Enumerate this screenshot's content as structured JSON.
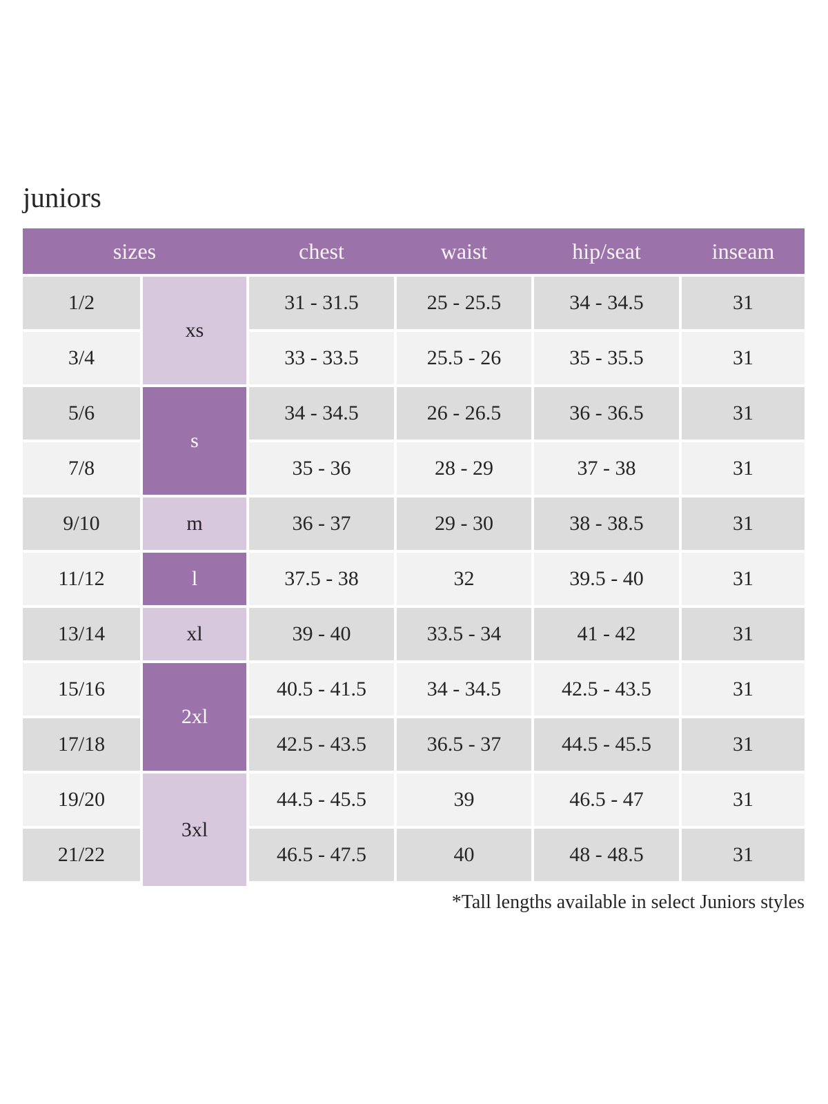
{
  "page": {
    "title": "juniors",
    "footnote": "*Tall lengths available in select Juniors styles"
  },
  "theme": {
    "header-purple": "#9c72aa",
    "lavender": "#d8c8dd",
    "row-gray": "#dcdcdc",
    "row-light": "#f2f2f2",
    "header-text": "#faf5fa",
    "body-text": "#252525"
  },
  "table": {
    "headers": {
      "sizes": "sizes",
      "chest": "chest",
      "waist": "waist",
      "hip_seat": "hip/seat",
      "inseam": "inseam"
    },
    "groups": [
      {
        "label": "xs",
        "span": 2,
        "style": "light"
      },
      {
        "label": "s",
        "span": 2,
        "style": "dark"
      },
      {
        "label": "m",
        "span": 1,
        "style": "light"
      },
      {
        "label": "l",
        "span": 1,
        "style": "dark"
      },
      {
        "label": "xl",
        "span": 1,
        "style": "light"
      },
      {
        "label": "2xl",
        "span": 2,
        "style": "dark"
      },
      {
        "label": "3xl",
        "span": 2,
        "style": "light"
      }
    ],
    "rows": [
      {
        "size": "1/2",
        "chest": "31 - 31.5",
        "waist": "25 - 25.5",
        "hip_seat": "34 - 34.5",
        "inseam": "31"
      },
      {
        "size": "3/4",
        "chest": "33 - 33.5",
        "waist": "25.5 - 26",
        "hip_seat": "35 - 35.5",
        "inseam": "31"
      },
      {
        "size": "5/6",
        "chest": "34 - 34.5",
        "waist": "26 - 26.5",
        "hip_seat": "36 - 36.5",
        "inseam": "31"
      },
      {
        "size": "7/8",
        "chest": "35 - 36",
        "waist": "28 - 29",
        "hip_seat": "37 - 38",
        "inseam": "31"
      },
      {
        "size": "9/10",
        "chest": "36 - 37",
        "waist": "29 - 30",
        "hip_seat": "38 - 38.5",
        "inseam": "31"
      },
      {
        "size": "11/12",
        "chest": "37.5 - 38",
        "waist": "32",
        "hip_seat": "39.5 - 40",
        "inseam": "31"
      },
      {
        "size": "13/14",
        "chest": "39 - 40",
        "waist": "33.5 - 34",
        "hip_seat": "41 - 42",
        "inseam": "31"
      },
      {
        "size": "15/16",
        "chest": "40.5 - 41.5",
        "waist": "34 - 34.5",
        "hip_seat": "42.5 - 43.5",
        "inseam": "31"
      },
      {
        "size": "17/18",
        "chest": "42.5 - 43.5",
        "waist": "36.5 - 37",
        "hip_seat": "44.5 - 45.5",
        "inseam": "31"
      },
      {
        "size": "19/20",
        "chest": "44.5 - 45.5",
        "waist": "39",
        "hip_seat": "46.5 - 47",
        "inseam": "31"
      },
      {
        "size": "21/22",
        "chest": "46.5 - 47.5",
        "waist": "40",
        "hip_seat": "48 - 48.5",
        "inseam": "31"
      }
    ]
  }
}
